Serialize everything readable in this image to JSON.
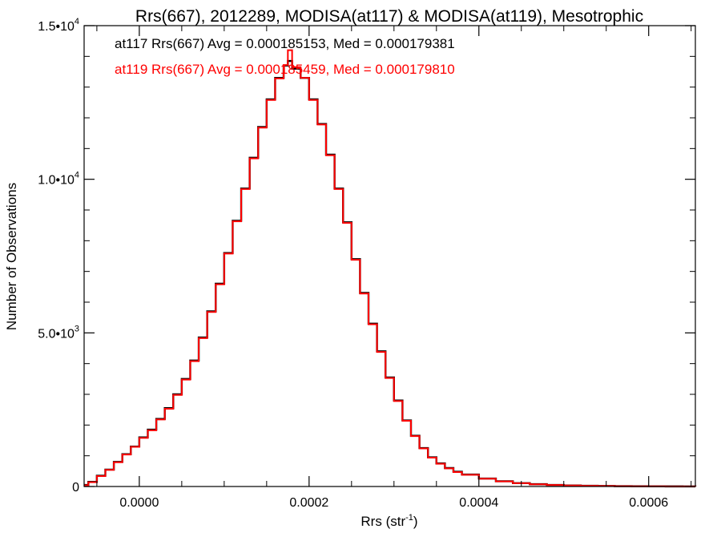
{
  "chart_data": {
    "type": "line",
    "title": "Rrs(667), 2012289, MODISA(at117) & MODISA(at119), Mesotrophic",
    "xlabel_base": "Rrs (str",
    "xlabel_sup": "-1",
    "xlabel_close": ")",
    "ylabel": "Number of Observations",
    "xlim": [
      -6.5e-05,
      0.000655
    ],
    "ylim": [
      0,
      15000
    ],
    "grid": false,
    "x_ticks": [
      {
        "value": 0.0,
        "label": "0.0000"
      },
      {
        "value": 0.0002,
        "label": "0.0002"
      },
      {
        "value": 0.0004,
        "label": "0.0004"
      },
      {
        "value": 0.0006,
        "label": "0.0006"
      }
    ],
    "y_ticks": [
      {
        "value": 0,
        "mant": "0",
        "exp": ""
      },
      {
        "value": 5000,
        "mant": "5.0•10",
        "exp": "3"
      },
      {
        "value": 10000,
        "mant": "1.0•10",
        "exp": "4"
      },
      {
        "value": 15000,
        "mant": "1.5•10",
        "exp": "4"
      }
    ],
    "annotations": [
      {
        "text": "at117 Rrs(667) Avg = 0.000185153, Med = 0.000179381",
        "color": "#000000"
      },
      {
        "text": "at119 Rrs(667) Avg = 0.000185459, Med = 0.000179810",
        "color": "#ff0000"
      }
    ],
    "series": [
      {
        "color": "#000000",
        "x": [
          -6.5e-05,
          -6e-05,
          -5e-05,
          -4e-05,
          -3e-05,
          -2e-05,
          -1e-05,
          0.0,
          1e-05,
          2e-05,
          3e-05,
          4e-05,
          5e-05,
          6e-05,
          7e-05,
          8e-05,
          9e-05,
          0.0001,
          0.00011,
          0.00012,
          0.00013,
          0.00014,
          0.00015,
          0.00016,
          0.00017,
          0.000175,
          0.00018,
          0.00019,
          0.0002,
          0.00021,
          0.00022,
          0.00023,
          0.00024,
          0.00025,
          0.00026,
          0.00027,
          0.00028,
          0.00029,
          0.0003,
          0.00031,
          0.00032,
          0.00033,
          0.00034,
          0.00035,
          0.00036,
          0.00037,
          0.00038,
          0.0004,
          0.00042,
          0.00044,
          0.00046,
          0.00048,
          0.0005,
          0.00052,
          0.00054,
          0.00056,
          0.00058,
          0.0006,
          0.00062,
          0.00064,
          0.000655
        ],
        "y": [
          50,
          150,
          350,
          550,
          800,
          1050,
          1300,
          1600,
          1850,
          2200,
          2550,
          3000,
          3500,
          4100,
          4850,
          5700,
          6600,
          7600,
          8650,
          9700,
          10700,
          11700,
          12600,
          13300,
          13700,
          13850,
          13600,
          13300,
          12600,
          11800,
          10800,
          9700,
          8600,
          7400,
          6300,
          5300,
          4400,
          3550,
          2800,
          2150,
          1650,
          1250,
          950,
          750,
          600,
          480,
          390,
          260,
          170,
          110,
          75,
          50,
          35,
          25,
          18,
          12,
          8,
          5,
          3,
          2,
          1
        ]
      },
      {
        "color": "#ff0000",
        "x": [
          -6.5e-05,
          -6e-05,
          -5e-05,
          -4e-05,
          -3e-05,
          -2e-05,
          -1e-05,
          0.0,
          1e-05,
          2e-05,
          3e-05,
          4e-05,
          5e-05,
          6e-05,
          7e-05,
          8e-05,
          9e-05,
          0.0001,
          0.00011,
          0.00012,
          0.00013,
          0.00014,
          0.00015,
          0.00016,
          0.00017,
          0.000175,
          0.00018,
          0.00019,
          0.0002,
          0.00021,
          0.00022,
          0.00023,
          0.00024,
          0.00025,
          0.00026,
          0.00027,
          0.00028,
          0.00029,
          0.0003,
          0.00031,
          0.00032,
          0.00033,
          0.00034,
          0.00035,
          0.00036,
          0.00037,
          0.00038,
          0.0004,
          0.00042,
          0.00044,
          0.00046,
          0.00048,
          0.0005,
          0.00052,
          0.00054,
          0.00056,
          0.00058,
          0.0006,
          0.00062,
          0.00064,
          0.000655
        ],
        "y": [
          40,
          140,
          340,
          540,
          790,
          1040,
          1290,
          1580,
          1830,
          2180,
          2530,
          2980,
          3480,
          4080,
          4830,
          5680,
          6580,
          7580,
          8630,
          9680,
          10680,
          11680,
          12580,
          13280,
          13720,
          14200,
          13650,
          13300,
          12580,
          11780,
          10780,
          9680,
          8580,
          7380,
          6280,
          5280,
          4380,
          3530,
          2780,
          2140,
          1640,
          1240,
          940,
          740,
          590,
          470,
          380,
          255,
          165,
          108,
          72,
          48,
          33,
          24,
          17,
          11,
          7,
          5,
          3,
          2,
          1
        ]
      }
    ]
  }
}
